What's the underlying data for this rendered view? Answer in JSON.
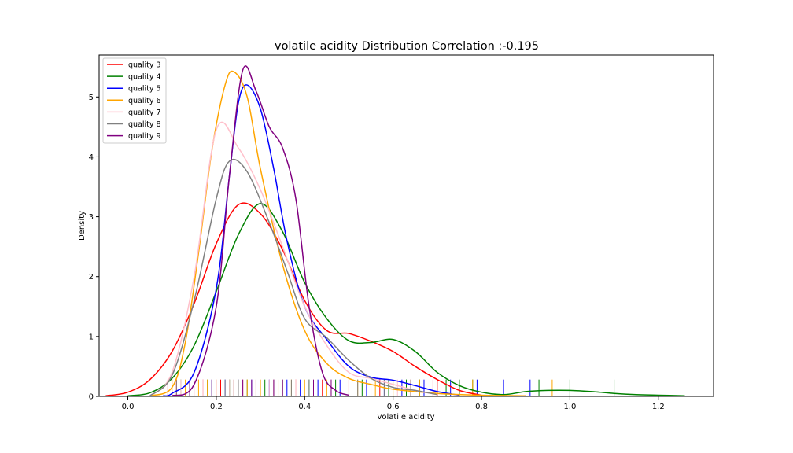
{
  "chart_data": {
    "type": "line",
    "title": "volatile acidity Distribution Correlation :-0.195",
    "xlabel": "volatile acidity",
    "ylabel": "Density",
    "xlim": [
      -0.065,
      1.325
    ],
    "ylim": [
      0,
      5.7
    ],
    "xticks": [
      0.0,
      0.2,
      0.4,
      0.6,
      0.8,
      1.0,
      1.2
    ],
    "xtick_labels": [
      "0.0",
      "0.2",
      "0.4",
      "0.6",
      "0.8",
      "1.0",
      "1.2"
    ],
    "yticks": [
      0,
      1,
      2,
      3,
      4,
      5
    ],
    "ytick_labels": [
      "0",
      "1",
      "2",
      "3",
      "4",
      "5"
    ],
    "grid": false,
    "legend_position": "top-left",
    "rug_height": 0.28,
    "series": [
      {
        "name": "quality 3",
        "color": "#ff0000",
        "points": [
          [
            -0.05,
            0.01
          ],
          [
            0.0,
            0.07
          ],
          [
            0.05,
            0.28
          ],
          [
            0.1,
            0.75
          ],
          [
            0.15,
            1.55
          ],
          [
            0.2,
            2.55
          ],
          [
            0.25,
            3.2
          ],
          [
            0.3,
            3.05
          ],
          [
            0.35,
            2.45
          ],
          [
            0.4,
            1.6
          ],
          [
            0.45,
            1.1
          ],
          [
            0.5,
            1.05
          ],
          [
            0.55,
            0.92
          ],
          [
            0.6,
            0.75
          ],
          [
            0.65,
            0.5
          ],
          [
            0.7,
            0.28
          ],
          [
            0.75,
            0.1
          ],
          [
            0.8,
            0.02
          ]
        ],
        "rug": [
          0.11,
          0.17,
          0.21,
          0.26,
          0.29,
          0.33,
          0.38,
          0.44,
          0.5,
          0.57,
          0.64,
          0.7
        ]
      },
      {
        "name": "quality 4",
        "color": "#008000",
        "points": [
          [
            0.0,
            0.01
          ],
          [
            0.05,
            0.06
          ],
          [
            0.1,
            0.3
          ],
          [
            0.15,
            0.85
          ],
          [
            0.2,
            1.75
          ],
          [
            0.25,
            2.7
          ],
          [
            0.3,
            3.22
          ],
          [
            0.35,
            2.75
          ],
          [
            0.4,
            1.9
          ],
          [
            0.45,
            1.3
          ],
          [
            0.5,
            0.93
          ],
          [
            0.55,
            0.9
          ],
          [
            0.6,
            0.95
          ],
          [
            0.65,
            0.75
          ],
          [
            0.7,
            0.4
          ],
          [
            0.75,
            0.18
          ],
          [
            0.8,
            0.07
          ],
          [
            0.85,
            0.03
          ],
          [
            0.9,
            0.08
          ],
          [
            0.95,
            0.1
          ],
          [
            1.0,
            0.1
          ],
          [
            1.05,
            0.08
          ],
          [
            1.1,
            0.05
          ],
          [
            1.15,
            0.03
          ],
          [
            1.2,
            0.02
          ],
          [
            1.26,
            0.01
          ]
        ],
        "rug": [
          0.12,
          0.18,
          0.23,
          0.27,
          0.31,
          0.35,
          0.41,
          0.47,
          0.53,
          0.59,
          0.63,
          0.66,
          0.72,
          0.75,
          0.78,
          0.93,
          1.0,
          1.1
        ]
      },
      {
        "name": "quality 5",
        "color": "#0000ff",
        "points": [
          [
            0.08,
            0.01
          ],
          [
            0.1,
            0.05
          ],
          [
            0.15,
            0.4
          ],
          [
            0.2,
            1.8
          ],
          [
            0.23,
            3.7
          ],
          [
            0.25,
            4.9
          ],
          [
            0.27,
            5.2
          ],
          [
            0.3,
            4.8
          ],
          [
            0.33,
            3.8
          ],
          [
            0.36,
            2.6
          ],
          [
            0.4,
            1.5
          ],
          [
            0.45,
            0.95
          ],
          [
            0.5,
            0.5
          ],
          [
            0.55,
            0.32
          ],
          [
            0.6,
            0.27
          ],
          [
            0.65,
            0.18
          ],
          [
            0.7,
            0.08
          ],
          [
            0.75,
            0.02
          ]
        ],
        "rug": [
          0.14,
          0.19,
          0.22,
          0.25,
          0.28,
          0.32,
          0.36,
          0.39,
          0.43,
          0.48,
          0.54,
          0.58,
          0.62,
          0.67,
          0.73,
          0.79,
          0.85,
          0.91
        ]
      },
      {
        "name": "quality 6",
        "color": "#ffa500",
        "points": [
          [
            0.05,
            0.01
          ],
          [
            0.1,
            0.15
          ],
          [
            0.13,
            0.9
          ],
          [
            0.16,
            2.4
          ],
          [
            0.19,
            4.1
          ],
          [
            0.22,
            5.2
          ],
          [
            0.24,
            5.42
          ],
          [
            0.27,
            5.0
          ],
          [
            0.3,
            3.8
          ],
          [
            0.35,
            2.2
          ],
          [
            0.4,
            1.1
          ],
          [
            0.45,
            0.55
          ],
          [
            0.5,
            0.3
          ],
          [
            0.55,
            0.2
          ],
          [
            0.6,
            0.12
          ],
          [
            0.7,
            0.05
          ],
          [
            0.8,
            0.02
          ],
          [
            0.9,
            0.01
          ]
        ],
        "rug": [
          0.1,
          0.13,
          0.16,
          0.18,
          0.2,
          0.24,
          0.27,
          0.3,
          0.34,
          0.37,
          0.4,
          0.45,
          0.52,
          0.56,
          0.6,
          0.66,
          0.78,
          0.96
        ]
      },
      {
        "name": "quality 7",
        "color": "#ffc0cb",
        "points": [
          [
            0.05,
            0.01
          ],
          [
            0.1,
            0.4
          ],
          [
            0.15,
            2.0
          ],
          [
            0.2,
            4.45
          ],
          [
            0.25,
            4.15
          ],
          [
            0.3,
            3.45
          ],
          [
            0.35,
            2.5
          ],
          [
            0.4,
            1.5
          ],
          [
            0.45,
            0.85
          ],
          [
            0.5,
            0.4
          ],
          [
            0.55,
            0.3
          ],
          [
            0.6,
            0.2
          ],
          [
            0.65,
            0.1
          ],
          [
            0.7,
            0.03
          ]
        ],
        "rug": [
          0.09,
          0.12,
          0.15,
          0.17,
          0.2,
          0.23,
          0.26,
          0.29,
          0.32,
          0.35,
          0.38,
          0.42,
          0.46,
          0.5,
          0.55,
          0.61,
          0.69
        ]
      },
      {
        "name": "quality 8",
        "color": "#808080",
        "points": [
          [
            0.05,
            0.01
          ],
          [
            0.1,
            0.35
          ],
          [
            0.15,
            1.6
          ],
          [
            0.2,
            3.3
          ],
          [
            0.23,
            3.93
          ],
          [
            0.27,
            3.75
          ],
          [
            0.32,
            2.9
          ],
          [
            0.36,
            2.1
          ],
          [
            0.4,
            1.3
          ],
          [
            0.45,
            0.98
          ],
          [
            0.5,
            0.6
          ],
          [
            0.55,
            0.3
          ],
          [
            0.6,
            0.15
          ],
          [
            0.65,
            0.1
          ],
          [
            0.7,
            0.03
          ]
        ],
        "rug": [
          0.11,
          0.14,
          0.19,
          0.22,
          0.25,
          0.29,
          0.33,
          0.37,
          0.41,
          0.46,
          0.52,
          0.58,
          0.64
        ]
      },
      {
        "name": "quality 9",
        "color": "#800080",
        "points": [
          [
            0.1,
            0.01
          ],
          [
            0.15,
            0.2
          ],
          [
            0.2,
            1.5
          ],
          [
            0.23,
            3.7
          ],
          [
            0.26,
            5.45
          ],
          [
            0.29,
            5.1
          ],
          [
            0.32,
            4.5
          ],
          [
            0.35,
            4.15
          ],
          [
            0.38,
            3.3
          ],
          [
            0.41,
            1.5
          ],
          [
            0.44,
            0.4
          ],
          [
            0.47,
            0.1
          ],
          [
            0.5,
            0.02
          ]
        ],
        "rug": [
          0.14,
          0.19,
          0.24,
          0.26,
          0.28,
          0.33,
          0.35,
          0.42,
          0.46
        ]
      }
    ]
  }
}
